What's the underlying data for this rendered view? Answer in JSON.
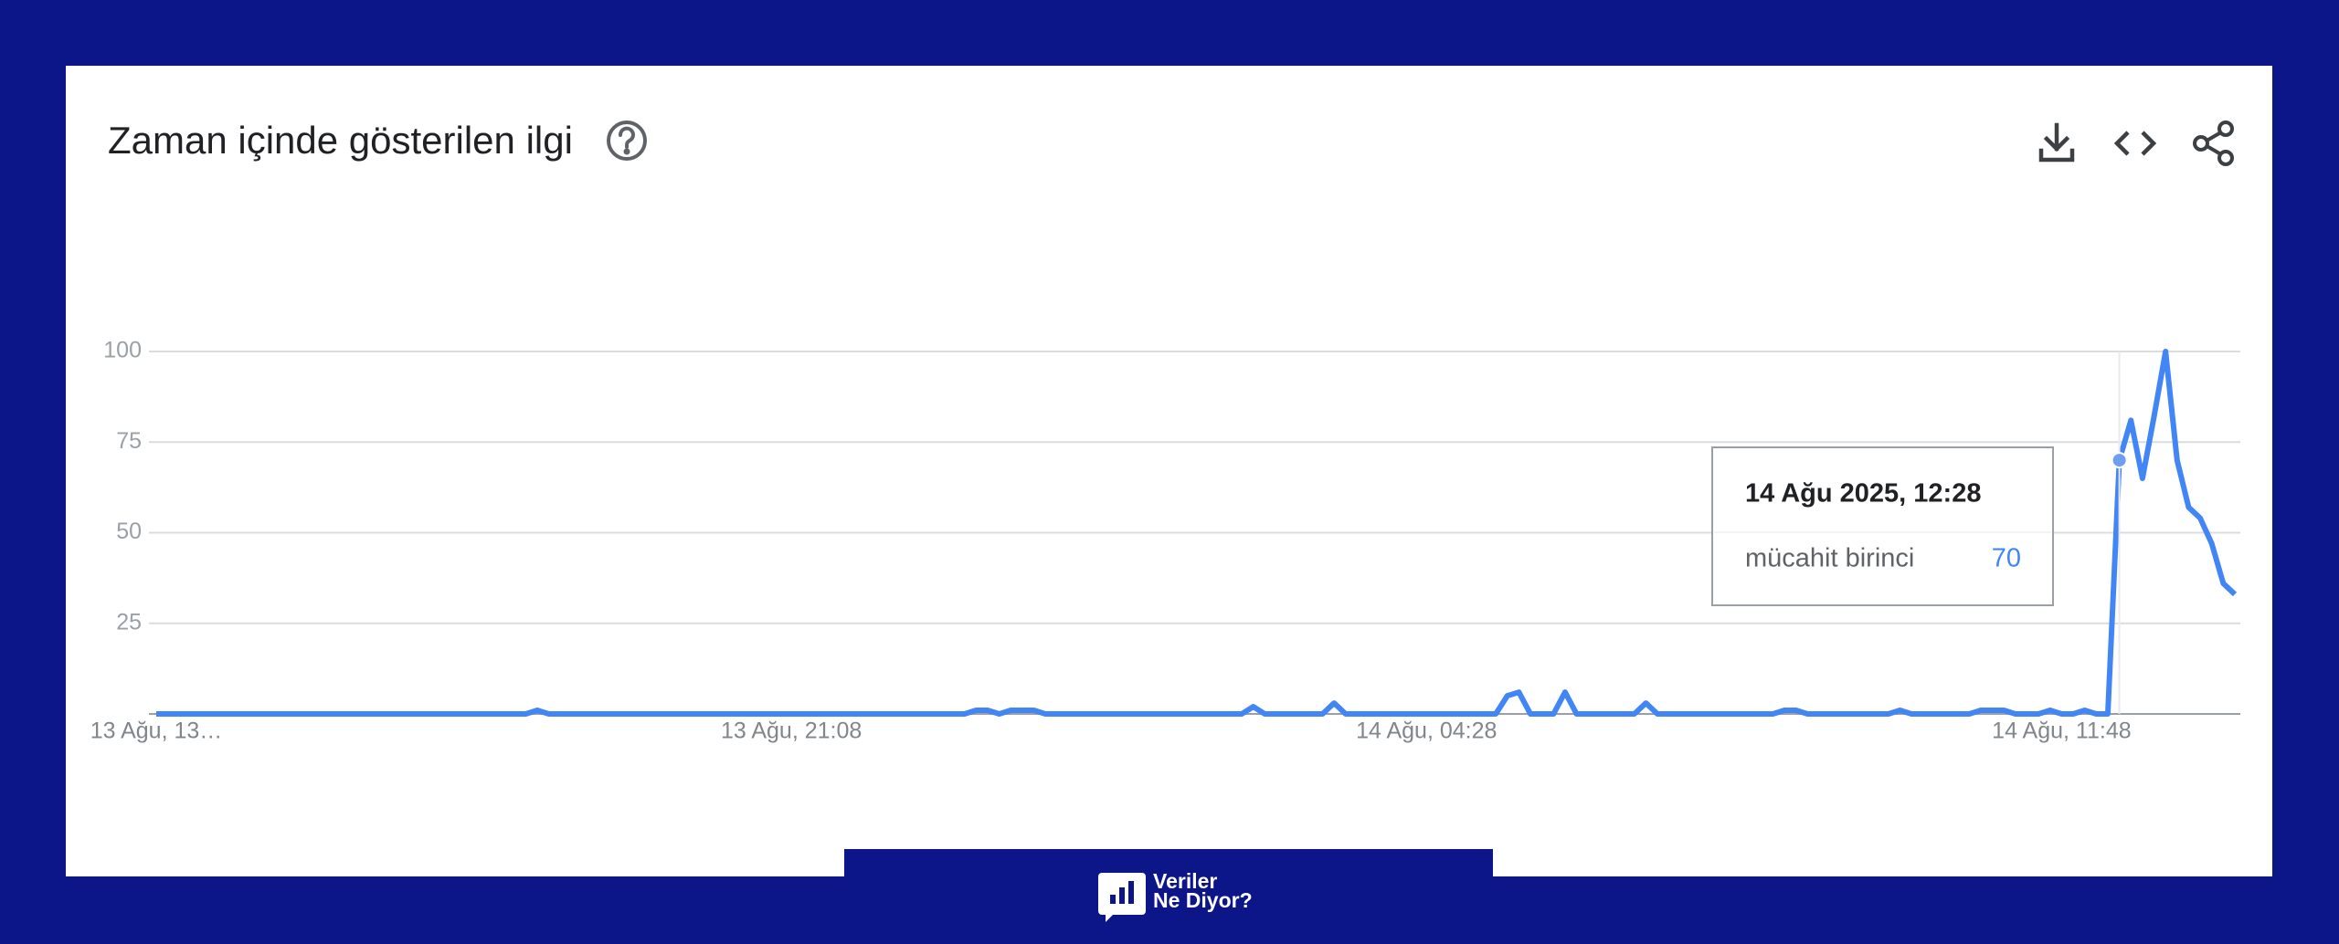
{
  "chart_data": {
    "type": "line",
    "title": "Zaman içinde gösterilen ilgi",
    "categories": [
      "13 Ağu, 13…",
      null,
      null,
      null,
      null,
      null,
      null,
      null,
      null,
      null,
      null,
      null,
      null,
      null,
      null,
      null,
      null,
      null,
      null,
      null,
      null,
      null,
      null,
      null,
      null,
      null,
      null,
      null,
      null,
      null,
      null,
      null,
      null,
      null,
      null,
      null,
      null,
      null,
      null,
      null,
      null,
      null,
      null,
      null,
      null,
      null,
      null,
      null,
      null,
      null,
      null,
      null,
      null,
      null,
      null,
      "13 Ağu, 21:08",
      null,
      null,
      null,
      null,
      null,
      null,
      null,
      null,
      null,
      null,
      null,
      null,
      null,
      null,
      null,
      null,
      null,
      null,
      null,
      null,
      null,
      null,
      null,
      null,
      null,
      null,
      null,
      null,
      null,
      null,
      null,
      null,
      null,
      null,
      null,
      null,
      null,
      null,
      null,
      null,
      null,
      null,
      null,
      null,
      null,
      null,
      null,
      null,
      null,
      null,
      null,
      null,
      null,
      null,
      "14 Ağu, 04:28",
      null,
      null,
      null,
      null,
      null,
      null,
      null,
      null,
      null,
      null,
      null,
      null,
      null,
      null,
      null,
      null,
      null,
      null,
      null,
      null,
      null,
      null,
      null,
      null,
      null,
      null,
      null,
      null,
      null,
      null,
      null,
      null,
      null,
      null,
      null,
      null,
      null,
      null,
      null,
      null,
      null,
      null,
      null,
      null,
      null,
      null,
      null,
      null,
      null,
      null,
      null,
      null,
      null,
      null,
      "14 Ağu, 11:48",
      null,
      null,
      null,
      null,
      null,
      null,
      null,
      null,
      null,
      null,
      null,
      null,
      null,
      null,
      null
    ],
    "series": [
      {
        "name": "mücahit birinci",
        "color": "#4285f4",
        "values": [
          0,
          0,
          0,
          0,
          0,
          0,
          0,
          0,
          0,
          0,
          0,
          0,
          0,
          0,
          0,
          0,
          0,
          0,
          0,
          0,
          0,
          0,
          0,
          0,
          0,
          0,
          0,
          0,
          0,
          0,
          0,
          0,
          0,
          1,
          0,
          0,
          0,
          0,
          0,
          0,
          0,
          0,
          0,
          0,
          0,
          0,
          0,
          0,
          0,
          0,
          0,
          0,
          0,
          0,
          0,
          0,
          0,
          0,
          0,
          0,
          0,
          0,
          0,
          0,
          0,
          0,
          0,
          0,
          0,
          0,
          0,
          1,
          1,
          0,
          1,
          1,
          1,
          0,
          0,
          0,
          0,
          0,
          0,
          0,
          0,
          0,
          0,
          0,
          0,
          0,
          0,
          0,
          0,
          0,
          0,
          2,
          0,
          0,
          0,
          0,
          0,
          0,
          3,
          0,
          0,
          0,
          0,
          0,
          0,
          0,
          0,
          0,
          0,
          0,
          0,
          0,
          0,
          5,
          6,
          0,
          0,
          0,
          6,
          0,
          0,
          0,
          0,
          0,
          0,
          3,
          0,
          0,
          0,
          0,
          0,
          0,
          0,
          0,
          0,
          0,
          0,
          1,
          1,
          0,
          0,
          0,
          0,
          0,
          0,
          0,
          0,
          1,
          0,
          0,
          0,
          0,
          0,
          0,
          1,
          1,
          1,
          0,
          0,
          0,
          1,
          0,
          0,
          1,
          0,
          0,
          70,
          81,
          65,
          82,
          100,
          70,
          57,
          54,
          47,
          36,
          33
        ]
      }
    ],
    "ylim": [
      0,
      100
    ],
    "yticks": [
      25,
      50,
      75,
      100
    ],
    "grid": true,
    "tooltip": {
      "title": "14 Ağu 2025, 12:28",
      "index": 170
    }
  },
  "footer": {
    "brand": [
      "Veriler",
      "Ne Diyor?"
    ]
  }
}
